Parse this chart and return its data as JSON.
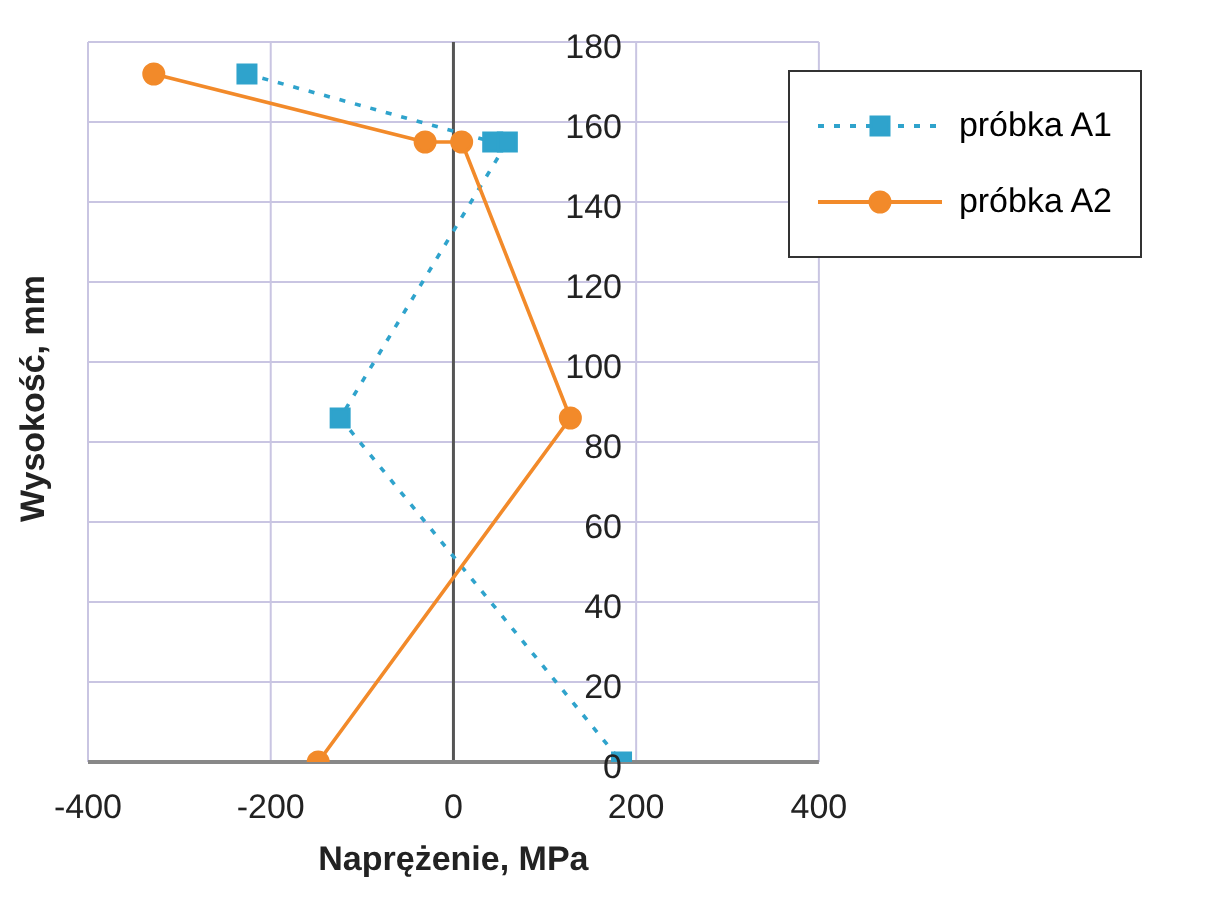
{
  "chart_data": {
    "type": "line",
    "xlabel": "Naprężenie, MPa",
    "ylabel": "Wysokość, mm",
    "xlim": [
      -400,
      400
    ],
    "xticks": [
      -400,
      -200,
      0,
      200,
      400
    ],
    "ylim": [
      0,
      180
    ],
    "yticks": [
      0,
      20,
      40,
      60,
      80,
      100,
      120,
      140,
      160,
      180
    ],
    "grid": true,
    "legend": "top right",
    "series": [
      {
        "name": "próbka A1",
        "color": "#2fa3cc",
        "marker": "square",
        "line_style": "dotted",
        "x": [
          -226,
          43,
          59,
          -124,
          184
        ],
        "values": [
          172,
          155,
          155,
          86,
          0
        ]
      },
      {
        "name": "próbka A2",
        "color": "#f28a2a",
        "marker": "circle",
        "line_style": "solid",
        "x": [
          -328,
          -31,
          9,
          128,
          -148
        ],
        "values": [
          172,
          155,
          155,
          86,
          0
        ]
      }
    ]
  }
}
